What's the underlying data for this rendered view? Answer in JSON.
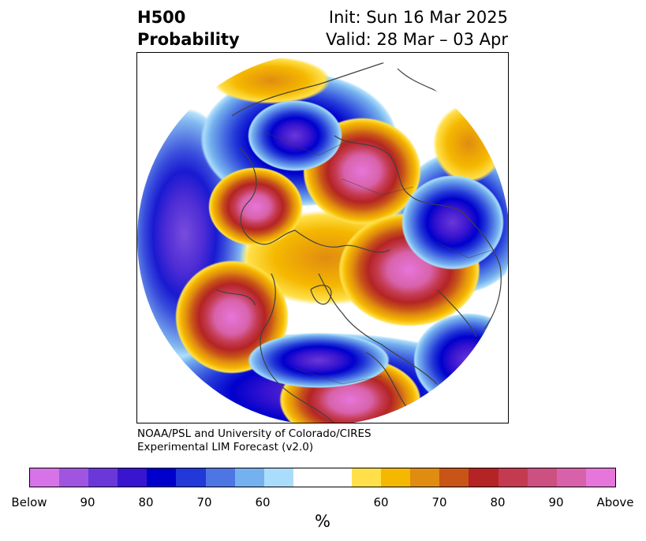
{
  "header": {
    "title_line1": "H500",
    "title_line2": "Probability",
    "init_label": "Init: Sun 16 Mar 2025",
    "valid_label": "Valid: 28 Mar – 03 Apr"
  },
  "credit": {
    "line1": "NOAA/PSL and University of Colorado/CIRES",
    "line2": "Experimental LIM Forecast (v2.0)"
  },
  "colorbar": {
    "colors": [
      "#d673e8",
      "#9f55e0",
      "#6a38d8",
      "#3a15d0",
      "#0000cc",
      "#2238d8",
      "#4d75e3",
      "#75b1ee",
      "#aadcfb",
      "#ffffff",
      "#ffffff",
      "#ffe04a",
      "#f5b800",
      "#e08c10",
      "#c85418",
      "#b42424",
      "#c43a50",
      "#cc5080",
      "#d862aa",
      "#e676da"
    ],
    "tick_labels": [
      "Below",
      "90",
      "80",
      "70",
      "60",
      "60",
      "70",
      "80",
      "90",
      "Above"
    ],
    "unit": "%"
  },
  "map": {
    "anomaly_colors": {
      "below_strong": "#6a38d8",
      "below_mid": "#0000cc",
      "below_weak": "#75b1ee",
      "above_weak": "#f5b800",
      "above_mid": "#b42424",
      "above_strong": "#e676da"
    },
    "coastline_color": "#404040"
  }
}
